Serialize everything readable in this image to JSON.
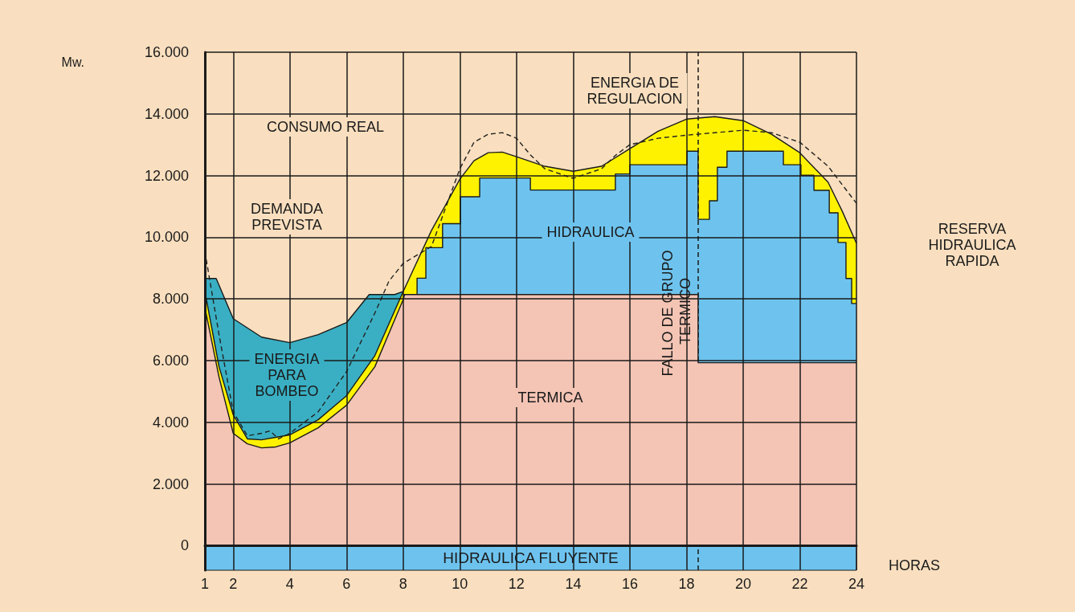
{
  "chart_data": {
    "type": "area",
    "xlabel": "HORAS",
    "ylabel": "Mw.",
    "xlim": [
      1,
      24
    ],
    "xticks": [
      1,
      2,
      4,
      6,
      8,
      10,
      12,
      14,
      16,
      18,
      20,
      22,
      24
    ],
    "ylim": [
      -800,
      16000
    ],
    "yticks": [
      0,
      {
        "value": 2000,
        "label": "2.000"
      },
      {
        "value": 4000,
        "label": "4.000"
      },
      {
        "value": 6000,
        "label": "6.000"
      },
      {
        "value": 8000,
        "label": "8.000"
      },
      {
        "value": 10000,
        "label": "10.000"
      },
      {
        "value": 12000,
        "label": "12.000"
      },
      {
        "value": 14000,
        "label": "14.000"
      },
      {
        "value": 16000,
        "label": "16.000"
      }
    ],
    "grid": true,
    "series": [
      {
        "color": "#3aafc3",
        "x": [
          1,
          1.4,
          2,
          3,
          4,
          5,
          6,
          6.8,
          7.7,
          8
        ],
        "values": [
          8660,
          8660,
          7360,
          6760,
          6580,
          6840,
          7230,
          8140,
          8140,
          8240
        ]
      },
      {
        "color": "#fff200",
        "x": [
          1,
          1.5,
          2,
          2.5,
          3,
          3.5,
          4,
          5,
          6,
          7,
          8,
          9,
          10,
          10.5,
          11,
          11.5,
          12,
          13,
          14,
          15,
          16,
          17,
          18,
          19,
          20,
          21,
          22,
          23,
          23.5,
          24
        ],
        "values": [
          8240,
          5800,
          4240,
          3460,
          3430,
          3510,
          3590,
          4080,
          4860,
          6160,
          8240,
          10220,
          11880,
          12480,
          12740,
          12760,
          12610,
          12300,
          12140,
          12300,
          12870,
          13440,
          13830,
          13910,
          13780,
          13340,
          12740,
          11780,
          10840,
          9800
        ]
      },
      {
        "color": "#6ec3ee",
        "x": [
          8,
          8.49,
          8.49,
          8.8,
          8.8,
          9.39,
          9.39,
          10.02,
          10.02,
          10.7,
          10.7,
          12.49,
          12.49,
          15.49,
          15.49,
          16,
          16,
          18.02,
          18.02,
          18.41,
          18.41,
          18.81,
          18.81,
          19.09,
          19.09,
          19.43,
          19.43,
          21.42,
          21.42,
          22.04,
          22.04,
          22.5,
          22.5,
          23.04,
          23.04,
          23.35,
          23.35,
          23.63,
          23.63,
          23.83,
          23.83,
          24
        ],
        "values": [
          8140,
          8140,
          8670,
          8670,
          9660,
          9660,
          10440,
          10440,
          11310,
          11310,
          11920,
          11920,
          11530,
          11530,
          12050,
          12050,
          12350,
          12350,
          12790,
          12790,
          10580,
          10580,
          11180,
          11180,
          12270,
          12270,
          12790,
          12790,
          12350,
          12350,
          12010,
          12010,
          11520,
          11520,
          10790,
          10790,
          9830,
          9830,
          8660,
          8660,
          7850,
          7850
        ]
      },
      {
        "color": "#f4c4b4",
        "x": [
          1,
          1.5,
          2,
          2.5,
          3,
          3.5,
          4,
          5,
          6,
          7,
          8,
          8.05,
          18.41,
          18.41,
          24
        ],
        "values": [
          7720,
          5460,
          3640,
          3300,
          3170,
          3200,
          3330,
          3820,
          4550,
          5800,
          7980,
          8140,
          8140,
          5930,
          5930
        ]
      },
      {
        "type": "line",
        "color": "#222222",
        "line_style": "dashed",
        "x": [
          1,
          1.5,
          2,
          2.5,
          3,
          3.3,
          3.6,
          4,
          5,
          6,
          7,
          7.5,
          8,
          9,
          10,
          10.5,
          11,
          11.5,
          12,
          12.5,
          13,
          14,
          15,
          15.5,
          16,
          17,
          18,
          19,
          20,
          21,
          22,
          23,
          24
        ],
        "values": [
          9540,
          6840,
          4340,
          3560,
          3640,
          3720,
          3460,
          3640,
          4340,
          5640,
          7540,
          8580,
          9150,
          9700,
          12220,
          13080,
          13340,
          13390,
          13210,
          12660,
          12220,
          11910,
          12220,
          12660,
          13000,
          13210,
          13310,
          13390,
          13470,
          13390,
          13080,
          12300,
          11100
        ]
      }
    ],
    "bands": [
      {
        "axis": "y",
        "from": -800,
        "to": 0,
        "label": "HIDRAULICA FLUYENTE",
        "color": "#6ec3ee"
      }
    ],
    "ref_lines": [
      {
        "axis": "x",
        "value": 18.4,
        "label": "FALLO DE GRUPO TERMICO",
        "line_style": "dashed"
      }
    ],
    "annotations": [
      "CONSUMO REAL",
      "DEMANDA\nPREVISTA",
      "ENERGIA DE\nREGULACION",
      "HIDRAULICA",
      "TERMICA",
      "ENERGIA\nPARA\nBOMBEO",
      "RESERVA\nHIDRAULICA\nRAPIDA"
    ]
  }
}
